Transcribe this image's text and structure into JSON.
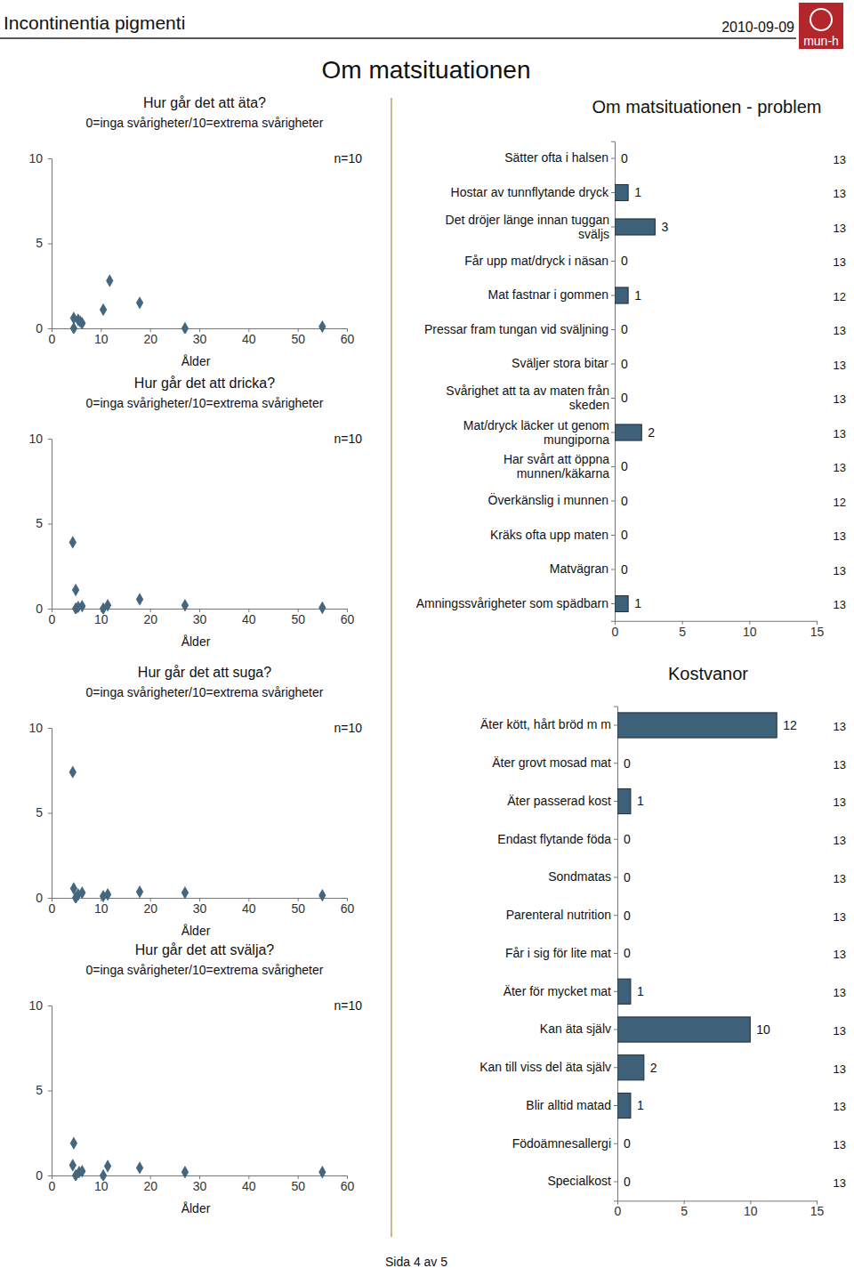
{
  "page": {
    "header": "Incontinentia pigmenti",
    "date": "2010-09-09",
    "logo": "mun-h",
    "title": "Om matsituationen",
    "footer": "Sida 4 av 5"
  },
  "chart_data": [
    {
      "type": "scatter",
      "title": "Hur går det att äta?",
      "subtitle": "0=inga svårigheter/10=extrema svårigheter",
      "annotation": "n=10",
      "x_label": "Ålder",
      "x": [
        4.5,
        4.5,
        5.4,
        5.8,
        6.2,
        10.5,
        11.8,
        17.9,
        27.1,
        55
      ],
      "values": [
        0.6,
        0,
        0.5,
        0.4,
        0.3,
        1.1,
        2.8,
        1.5,
        0,
        0.1
      ],
      "xlim": [
        0,
        60
      ],
      "xticks": [
        0,
        10,
        20,
        30,
        40,
        50,
        60
      ],
      "ylim": [
        0,
        10
      ],
      "yticks": [
        0,
        5,
        10
      ],
      "color": "#45667f",
      "marker": "diamond"
    },
    {
      "type": "scatter",
      "title": "Hur går det att dricka?",
      "subtitle": "0=inga svårigheter/10=extrema svårigheter",
      "annotation": "n=10",
      "x_label": "Ålder",
      "x": [
        4.3,
        4.9,
        4.9,
        5.4,
        6.2,
        10.5,
        11.4,
        17.9,
        27.1,
        55
      ],
      "values": [
        3.9,
        1.1,
        0,
        0.1,
        0.15,
        0,
        0.2,
        0.55,
        0.2,
        0.05
      ],
      "xlim": [
        0,
        60
      ],
      "xticks": [
        0,
        10,
        20,
        30,
        40,
        50,
        60
      ],
      "ylim": [
        0,
        10
      ],
      "yticks": [
        0,
        5,
        10
      ],
      "color": "#45667f",
      "marker": "diamond"
    },
    {
      "type": "scatter",
      "title": "Hur går det att suga?",
      "subtitle": "0=inga svårigheter/10=extrema svårigheter",
      "annotation": "n=10",
      "x_label": "Ålder",
      "x": [
        4.3,
        4.5,
        4.9,
        5.4,
        6.2,
        10.5,
        11.4,
        17.9,
        27.1,
        55
      ],
      "values": [
        7.4,
        0.55,
        0,
        0.2,
        0.3,
        0.1,
        0.2,
        0.35,
        0.3,
        0.15
      ],
      "xlim": [
        0,
        60
      ],
      "xticks": [
        0,
        10,
        20,
        30,
        40,
        50,
        60
      ],
      "ylim": [
        0,
        10
      ],
      "yticks": [
        0,
        5,
        10
      ],
      "color": "#45667f",
      "marker": "diamond"
    },
    {
      "type": "scatter",
      "title": "Hur går det att svälja?",
      "subtitle": "0=inga svårigheter/10=extrema svårigheter",
      "annotation": "n=10",
      "x_label": "Ålder",
      "x": [
        4.5,
        4.3,
        4.9,
        5.6,
        6.2,
        10.5,
        11.4,
        17.9,
        27.1,
        55
      ],
      "values": [
        1.9,
        0.6,
        0,
        0.2,
        0.25,
        0,
        0.55,
        0.45,
        0.2,
        0.2
      ],
      "xlim": [
        0,
        60
      ],
      "xticks": [
        0,
        10,
        20,
        30,
        40,
        50,
        60
      ],
      "ylim": [
        0,
        10
      ],
      "yticks": [
        0,
        5,
        10
      ],
      "color": "#45667f",
      "marker": "diamond"
    },
    {
      "type": "bar",
      "orientation": "horizontal",
      "title": "Om matsituationen - problem",
      "categories": [
        "Sätter ofta i halsen",
        "Hostar av tunnflytande dryck",
        "Det dröjer länge innan tuggan sväljs",
        "Får upp mat/dryck i näsan",
        "Mat fastnar i gommen",
        "Pressar fram tungan vid sväljning",
        "Sväljer stora bitar",
        "Svårighet att ta av maten från skeden",
        "Mat/dryck läcker ut genom mungiporna",
        "Har svårt att öppna munnen/käkarna",
        "Överkänslig i munnen",
        "Kräks ofta upp maten",
        "Matvägran",
        "Amningssvårigheter som spädbarn"
      ],
      "values": [
        0,
        1,
        3,
        0,
        1,
        0,
        0,
        0,
        2,
        0,
        0,
        0,
        0,
        1
      ],
      "n": [
        13,
        13,
        13,
        13,
        12,
        13,
        13,
        13,
        13,
        13,
        12,
        13,
        13,
        13
      ],
      "xlim": [
        0,
        15
      ],
      "xticks": [
        0,
        5,
        10,
        15
      ],
      "color": "#3f6079",
      "data_labels": true
    },
    {
      "type": "bar",
      "orientation": "horizontal",
      "title": "Kostvanor",
      "categories": [
        "Äter kött, hårt bröd m m",
        "Äter grovt mosad mat",
        "Äter passerad kost",
        "Endast flytande föda",
        "Sondmatas",
        "Parenteral nutrition",
        "Får i sig för lite mat",
        "Äter för mycket mat",
        "Kan äta själv",
        "Kan till viss del äta själv",
        "Blir alltid matad",
        "Födoämnesallergi",
        "Specialkost"
      ],
      "values": [
        12,
        0,
        1,
        0,
        0,
        0,
        0,
        1,
        10,
        2,
        1,
        0,
        0
      ],
      "n": [
        13,
        13,
        13,
        13,
        13,
        13,
        13,
        13,
        13,
        13,
        13,
        13,
        13
      ],
      "xlim": [
        0,
        15
      ],
      "xticks": [
        0,
        5,
        10,
        15
      ],
      "color": "#3f6079",
      "data_labels": true
    }
  ]
}
